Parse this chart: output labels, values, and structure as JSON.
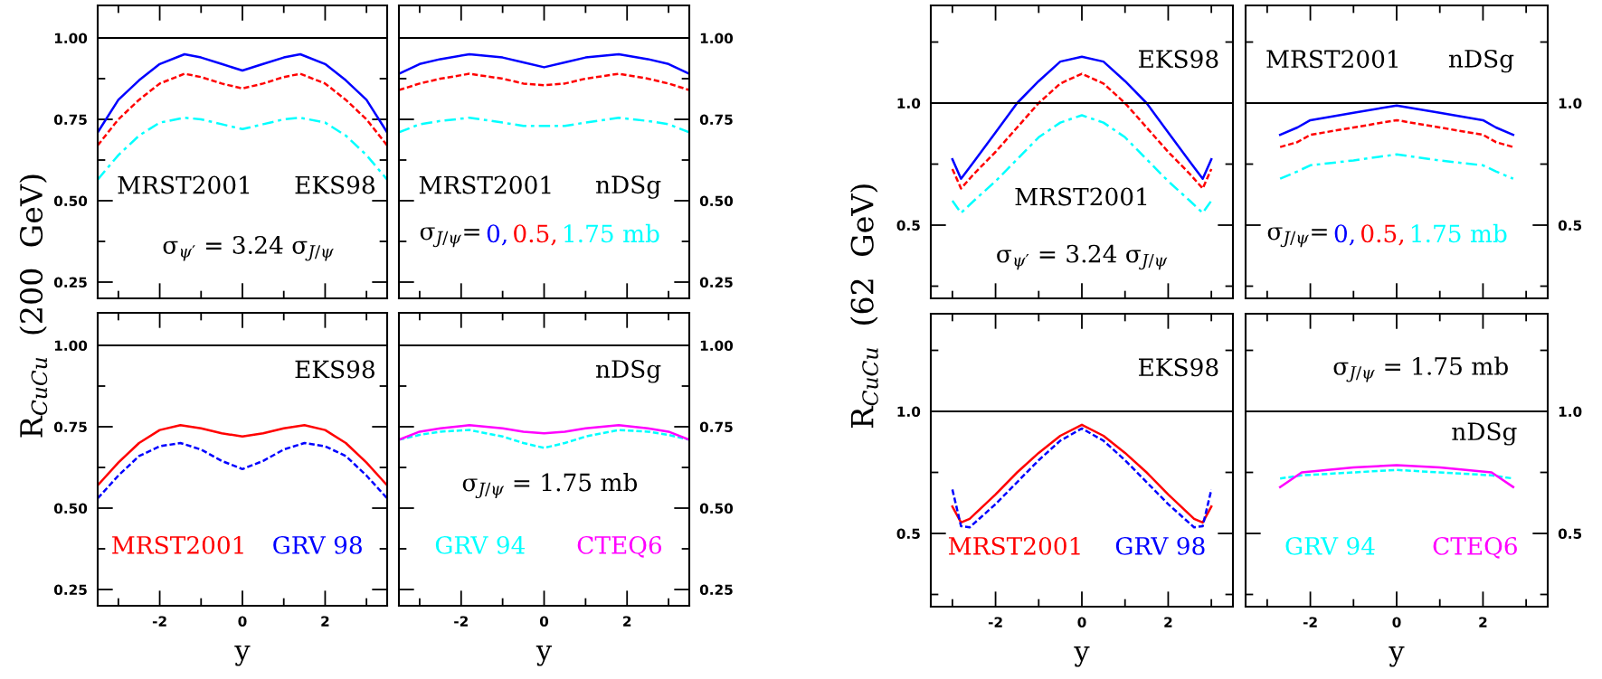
{
  "chart_data": [
    {
      "type": "line",
      "ylabel": "R$_{CuCu}$  (200  GeV)",
      "xlim": [
        -3.5,
        3.5
      ],
      "ylim": [
        0.2,
        1.1
      ],
      "tick_labels": "y",
      "xticks": [
        {
          "value": -3,
          "label": null
        },
        -2,
        {
          "value": -1,
          "label": null
        },
        0,
        {
          "value": 1,
          "label": null
        },
        2,
        {
          "value": 3,
          "label": null
        }
      ],
      "yticks": [
        {
          "value": 0.25,
          "label": "0.25"
        },
        {
          "value": 0.375,
          "label": null
        },
        {
          "value": 0.5,
          "label": "0.50"
        },
        {
          "value": 0.625,
          "label": null
        },
        {
          "value": 0.75,
          "label": "0.75"
        },
        {
          "value": 0.875,
          "label": null
        },
        {
          "value": 1,
          "label": "1.00"
        }
      ],
      "ref_lines": [
        {
          "axis": "y",
          "value": 1,
          "color": "#000000"
        }
      ],
      "annotations": [
        "MRST2001",
        "EKS98",
        "σ$_{ψ′}$ = 3.24 σ$_{J/ψ}$"
      ],
      "x": [
        -3.5,
        -3,
        -2.5,
        -2,
        -1.4,
        -1,
        -0.5,
        0,
        0.5,
        1,
        1.4,
        2,
        2.5,
        3,
        3.5
      ],
      "series": [
        {
          "color": "#0000ff",
          "line_style": "solid",
          "values": [
            0.71,
            0.81,
            0.87,
            0.92,
            0.95,
            0.94,
            0.92,
            0.9,
            0.92,
            0.94,
            0.95,
            0.92,
            0.87,
            0.81,
            0.71
          ]
        },
        {
          "color": "#ff0000",
          "line_style": "dashed",
          "values": [
            0.67,
            0.75,
            0.81,
            0.86,
            0.89,
            0.88,
            0.86,
            0.845,
            0.86,
            0.88,
            0.89,
            0.86,
            0.81,
            0.75,
            0.67
          ]
        },
        {
          "color": "#00ffff",
          "line_style": "dashdot",
          "values": [
            0.565,
            0.64,
            0.7,
            0.74,
            0.755,
            0.75,
            0.735,
            0.72,
            0.735,
            0.75,
            0.755,
            0.74,
            0.7,
            0.64,
            0.565
          ]
        }
      ]
    },
    {
      "type": "line",
      "xlim": [
        -3.5,
        3.5
      ],
      "ylim": [
        0.2,
        1.1
      ],
      "tick_labels": "y",
      "legend": "bottom",
      "legend_title": "σ$_{J/ψ}$=",
      "xticks": [
        {
          "value": -3,
          "label": null
        },
        -2,
        {
          "value": -1,
          "label": null
        },
        0,
        {
          "value": 1,
          "label": null
        },
        2,
        {
          "value": 3,
          "label": null
        }
      ],
      "yticks": [
        {
          "value": 0.25,
          "label": "0.25"
        },
        {
          "value": 0.375,
          "label": null
        },
        {
          "value": 0.5,
          "label": "0.50"
        },
        {
          "value": 0.625,
          "label": null
        },
        {
          "value": 0.75,
          "label": "0.75"
        },
        {
          "value": 0.875,
          "label": null
        },
        {
          "value": 1,
          "label": "1.00"
        }
      ],
      "ref_lines": [
        {
          "axis": "y",
          "value": 1,
          "color": "#000000"
        }
      ],
      "annotations": [
        "MRST2001",
        "nDSg"
      ],
      "x": [
        -3.5,
        -3,
        -2.5,
        -1.8,
        -1,
        -0.5,
        0,
        0.5,
        1,
        1.8,
        2.5,
        3,
        3.5
      ],
      "series": [
        {
          "name": "0,",
          "color": "#0000ff",
          "line_style": "solid",
          "values": [
            0.89,
            0.92,
            0.935,
            0.95,
            0.94,
            0.925,
            0.91,
            0.925,
            0.94,
            0.95,
            0.935,
            0.92,
            0.89
          ]
        },
        {
          "name": "0.5,",
          "color": "#ff0000",
          "line_style": "dashed",
          "values": [
            0.84,
            0.86,
            0.875,
            0.89,
            0.875,
            0.86,
            0.855,
            0.86,
            0.875,
            0.89,
            0.875,
            0.86,
            0.84
          ]
        },
        {
          "name": "1.75 mb",
          "color": "#00ffff",
          "line_style": "dashdot",
          "values": [
            0.71,
            0.735,
            0.745,
            0.755,
            0.74,
            0.73,
            0.73,
            0.73,
            0.74,
            0.755,
            0.745,
            0.735,
            0.71
          ]
        }
      ]
    },
    {
      "type": "line",
      "xlabel": "y",
      "xlim": [
        -3.5,
        3.5
      ],
      "ylim": [
        0.2,
        1.1
      ],
      "legend": "bottom",
      "xticks": [
        {
          "value": -3,
          "label": null
        },
        -2,
        {
          "value": -1,
          "label": null
        },
        0,
        {
          "value": 1,
          "label": null
        },
        2,
        {
          "value": 3,
          "label": null
        }
      ],
      "yticks": [
        {
          "value": 0.25,
          "label": "0.25"
        },
        {
          "value": 0.375,
          "label": null
        },
        {
          "value": 0.5,
          "label": "0.50"
        },
        {
          "value": 0.625,
          "label": null
        },
        {
          "value": 0.75,
          "label": "0.75"
        },
        {
          "value": 0.875,
          "label": null
        },
        {
          "value": 1,
          "label": "1.00"
        }
      ],
      "ref_lines": [
        {
          "axis": "y",
          "value": 1,
          "color": "#000000"
        }
      ],
      "annotations": [
        "EKS98"
      ],
      "x": [
        -3.5,
        -3,
        -2.5,
        -2,
        -1.5,
        -1,
        -0.5,
        0,
        0.5,
        1,
        1.5,
        2,
        2.5,
        3,
        3.5
      ],
      "series": [
        {
          "name": "MRST2001",
          "color": "#ff0000",
          "line_style": "solid",
          "values": [
            0.57,
            0.64,
            0.7,
            0.74,
            0.755,
            0.745,
            0.73,
            0.72,
            0.73,
            0.745,
            0.755,
            0.74,
            0.7,
            0.64,
            0.57
          ]
        },
        {
          "name": "GRV 98",
          "color": "#0000ff",
          "line_style": "dashed",
          "values": [
            0.53,
            0.6,
            0.66,
            0.69,
            0.7,
            0.68,
            0.645,
            0.62,
            0.645,
            0.68,
            0.7,
            0.69,
            0.66,
            0.6,
            0.53
          ]
        }
      ]
    },
    {
      "type": "line",
      "xlabel": "y",
      "xlim": [
        -3.5,
        3.5
      ],
      "ylim": [
        0.2,
        1.1
      ],
      "legend": "bottom",
      "xticks": [
        {
          "value": -3,
          "label": null
        },
        -2,
        {
          "value": -1,
          "label": null
        },
        0,
        {
          "value": 1,
          "label": null
        },
        2,
        {
          "value": 3,
          "label": null
        }
      ],
      "yticks": [
        {
          "value": 0.25,
          "label": "0.25"
        },
        {
          "value": 0.375,
          "label": null
        },
        {
          "value": 0.5,
          "label": "0.50"
        },
        {
          "value": 0.625,
          "label": null
        },
        {
          "value": 0.75,
          "label": "0.75"
        },
        {
          "value": 0.875,
          "label": null
        },
        {
          "value": 1,
          "label": "1.00"
        }
      ],
      "ref_lines": [
        {
          "axis": "y",
          "value": 1,
          "color": "#000000"
        }
      ],
      "annotations": [
        "nDSg",
        "σ$_{J/ψ}$ = 1.75 mb"
      ],
      "x": [
        -3.5,
        -3,
        -2.5,
        -1.8,
        -1,
        -0.5,
        0,
        0.5,
        1,
        1.8,
        2.5,
        3,
        3.5
      ],
      "series": [
        {
          "name": "GRV 94",
          "color": "#00ffff",
          "line_style": "dashed",
          "values": [
            0.71,
            0.725,
            0.735,
            0.74,
            0.72,
            0.7,
            0.685,
            0.7,
            0.72,
            0.74,
            0.735,
            0.725,
            0.71
          ]
        },
        {
          "name": "CTEQ6",
          "color": "#ff00ff",
          "line_style": "solid",
          "values": [
            0.71,
            0.735,
            0.745,
            0.755,
            0.745,
            0.735,
            0.73,
            0.735,
            0.745,
            0.755,
            0.745,
            0.735,
            0.71
          ]
        }
      ]
    },
    {
      "type": "line",
      "ylabel": "R$_{CuCu}$  (62  GeV)",
      "xlim": [
        -3.5,
        3.5
      ],
      "ylim": [
        0.2,
        1.4
      ],
      "tick_labels": "y",
      "xticks": [
        {
          "value": -3,
          "label": null
        },
        -2,
        {
          "value": -1,
          "label": null
        },
        0,
        {
          "value": 1,
          "label": null
        },
        2,
        {
          "value": 3,
          "label": null
        }
      ],
      "yticks": [
        {
          "value": 0.25,
          "label": null
        },
        {
          "value": 0.5,
          "label": "0.5"
        },
        {
          "value": 0.75,
          "label": null
        },
        {
          "value": 1,
          "label": "1.0"
        },
        {
          "value": 1.25,
          "label": null
        }
      ],
      "ref_lines": [
        {
          "axis": "y",
          "value": 1,
          "color": "#000000"
        }
      ],
      "annotations": [
        "EKS98",
        "MRST2001",
        "σ$_{ψ′}$ = 3.24 σ$_{J/ψ}$"
      ],
      "x": [
        -3,
        -2.8,
        -2.5,
        -2,
        -1.5,
        -1,
        -0.5,
        0,
        0.5,
        1,
        1.5,
        2,
        2.5,
        2.8,
        3
      ],
      "series": [
        {
          "color": "#0000ff",
          "line_style": "solid",
          "values": [
            0.77,
            0.69,
            0.76,
            0.88,
            1.0,
            1.09,
            1.17,
            1.19,
            1.17,
            1.09,
            1.0,
            0.88,
            0.76,
            0.69,
            0.77
          ]
        },
        {
          "color": "#ff0000",
          "line_style": "dashed",
          "values": [
            0.73,
            0.65,
            0.71,
            0.8,
            0.9,
            1.0,
            1.08,
            1.12,
            1.08,
            1.0,
            0.9,
            0.8,
            0.71,
            0.65,
            0.73
          ]
        },
        {
          "color": "#00ffff",
          "line_style": "dashdot",
          "values": [
            0.6,
            0.55,
            0.6,
            0.68,
            0.77,
            0.86,
            0.92,
            0.95,
            0.92,
            0.86,
            0.77,
            0.68,
            0.6,
            0.55,
            0.6
          ]
        }
      ]
    },
    {
      "type": "line",
      "xlim": [
        -3.5,
        3.5
      ],
      "ylim": [
        0.2,
        1.4
      ],
      "tick_labels": "y",
      "legend": "bottom",
      "legend_title": "σ$_{J/ψ}$=",
      "xticks": [
        {
          "value": -3,
          "label": null
        },
        -2,
        {
          "value": -1,
          "label": null
        },
        0,
        {
          "value": 1,
          "label": null
        },
        2,
        {
          "value": 3,
          "label": null
        }
      ],
      "yticks": [
        {
          "value": 0.25,
          "label": null
        },
        {
          "value": 0.5,
          "label": "0.5"
        },
        {
          "value": 0.75,
          "label": null
        },
        {
          "value": 1,
          "label": "1.0"
        },
        {
          "value": 1.25,
          "label": null
        }
      ],
      "ref_lines": [
        {
          "axis": "y",
          "value": 1,
          "color": "#000000"
        }
      ],
      "annotations": [
        "MRST2001",
        "nDSg"
      ],
      "x": [
        -2.7,
        -2.3,
        -2,
        -1,
        0,
        1,
        2,
        2.3,
        2.7
      ],
      "series": [
        {
          "name": "0,",
          "color": "#0000ff",
          "line_style": "solid",
          "values": [
            0.87,
            0.9,
            0.93,
            0.96,
            0.99,
            0.96,
            0.93,
            0.9,
            0.87
          ]
        },
        {
          "name": "0.5,",
          "color": "#ff0000",
          "line_style": "dashed",
          "values": [
            0.82,
            0.84,
            0.87,
            0.9,
            0.93,
            0.9,
            0.87,
            0.84,
            0.82
          ]
        },
        {
          "name": "1.75 mb",
          "color": "#00ffff",
          "line_style": "dashdot",
          "values": [
            0.69,
            0.72,
            0.745,
            0.765,
            0.79,
            0.765,
            0.745,
            0.72,
            0.69
          ]
        }
      ]
    },
    {
      "type": "line",
      "xlabel": "y",
      "xlim": [
        -3.5,
        3.5
      ],
      "ylim": [
        0.2,
        1.4
      ],
      "legend": "bottom",
      "xticks": [
        {
          "value": -3,
          "label": null
        },
        -2,
        {
          "value": -1,
          "label": null
        },
        0,
        {
          "value": 1,
          "label": null
        },
        2,
        {
          "value": 3,
          "label": null
        }
      ],
      "yticks": [
        {
          "value": 0.25,
          "label": null
        },
        {
          "value": 0.5,
          "label": "0.5"
        },
        {
          "value": 0.75,
          "label": null
        },
        {
          "value": 1,
          "label": "1.0"
        },
        {
          "value": 1.25,
          "label": null
        }
      ],
      "ref_lines": [
        {
          "axis": "y",
          "value": 1,
          "color": "#000000"
        }
      ],
      "annotations": [
        "EKS98"
      ],
      "x": [
        -3,
        -2.8,
        -2.6,
        -2,
        -1.5,
        -1,
        -0.5,
        0,
        0.5,
        1,
        1.5,
        2,
        2.6,
        2.8,
        3
      ],
      "series": [
        {
          "name": "MRST2001",
          "color": "#ff0000",
          "line_style": "solid",
          "values": [
            0.61,
            0.545,
            0.56,
            0.66,
            0.75,
            0.83,
            0.9,
            0.945,
            0.9,
            0.83,
            0.75,
            0.66,
            0.56,
            0.545,
            0.61
          ]
        },
        {
          "name": "GRV 98",
          "color": "#0000ff",
          "line_style": "dashed",
          "values": [
            0.68,
            0.53,
            0.525,
            0.62,
            0.71,
            0.8,
            0.88,
            0.93,
            0.88,
            0.8,
            0.71,
            0.62,
            0.525,
            0.53,
            0.68
          ]
        }
      ]
    },
    {
      "type": "line",
      "xlabel": "y",
      "xlim": [
        -3.5,
        3.5
      ],
      "ylim": [
        0.2,
        1.4
      ],
      "legend": "bottom",
      "xticks": [
        {
          "value": -3,
          "label": null
        },
        -2,
        {
          "value": -1,
          "label": null
        },
        0,
        {
          "value": 1,
          "label": null
        },
        2,
        {
          "value": 3,
          "label": null
        }
      ],
      "yticks": [
        {
          "value": 0.25,
          "label": null
        },
        {
          "value": 0.5,
          "label": "0.5"
        },
        {
          "value": 0.75,
          "label": null
        },
        {
          "value": 1,
          "label": "1.0"
        },
        {
          "value": 1.25,
          "label": null
        }
      ],
      "ref_lines": [
        {
          "axis": "y",
          "value": 1,
          "color": "#000000"
        }
      ],
      "annotations": [
        "σ$_{J/ψ}$ = 1.75 mb",
        "nDSg"
      ],
      "x": [
        -2.7,
        -2.2,
        -1,
        0,
        1,
        2.2,
        2.7
      ],
      "series": [
        {
          "name": "GRV 94",
          "color": "#00ffff",
          "line_style": "dashed",
          "values": [
            0.725,
            0.738,
            0.75,
            0.76,
            0.75,
            0.738,
            0.725
          ]
        },
        {
          "name": "CTEQ6",
          "color": "#ff00ff",
          "line_style": "solid",
          "values": [
            0.69,
            0.75,
            0.77,
            0.78,
            0.77,
            0.75,
            0.69
          ]
        }
      ]
    }
  ]
}
